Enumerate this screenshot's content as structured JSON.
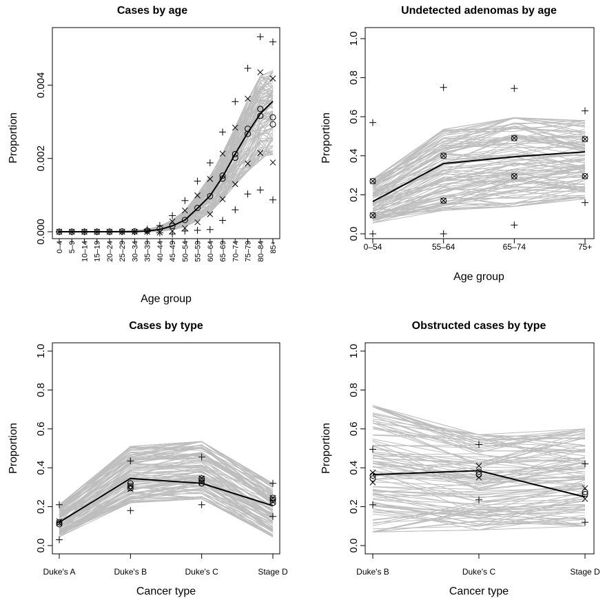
{
  "chart_data": [
    {
      "type": "line",
      "title": "Cases by age",
      "xlabel": "Age group",
      "ylabel": "Proportion",
      "categories": [
        "0–4",
        "5–9",
        "10–14",
        "15–19",
        "20–24",
        "25–29",
        "30–34",
        "35–39",
        "40–44",
        "45–49",
        "50–54",
        "55–59",
        "60–64",
        "65–69",
        "70–74",
        "75–79",
        "80–84",
        "85+"
      ],
      "ylim": [
        0,
        0.0054
      ],
      "yticks": [
        0.0,
        0.002,
        0.004
      ],
      "ytick_labels": [
        "0.000",
        "0.002",
        "0.004"
      ],
      "median": [
        0,
        0,
        0,
        0,
        0,
        0,
        0,
        2e-05,
        6e-05,
        0.00016,
        0.00032,
        0.00064,
        0.00098,
        0.0015,
        0.00212,
        0.0027,
        0.00322,
        0.00356
      ],
      "band_low": [
        0,
        0,
        0,
        0,
        0,
        0,
        0,
        0,
        1e-05,
        5e-05,
        0.00014,
        0.0003,
        0.00052,
        0.00085,
        0.00128,
        0.00165,
        0.00195,
        0.0021
      ],
      "band_high": [
        0,
        0,
        0,
        1e-05,
        1e-05,
        2e-05,
        4e-05,
        7e-05,
        0.00015,
        0.00032,
        0.00058,
        0.00102,
        0.00152,
        0.00215,
        0.00285,
        0.0036,
        0.00425,
        0.0044
      ],
      "circles": [
        [
          0,
          0
        ],
        [
          1,
          0
        ],
        [
          2,
          0
        ],
        [
          3,
          0
        ],
        [
          4,
          0
        ],
        [
          5,
          1e-05
        ],
        [
          6,
          1e-05
        ],
        [
          7,
          3e-05
        ],
        [
          8,
          8e-05
        ],
        [
          9,
          0.00016
        ],
        [
          10,
          0.00032
        ],
        [
          11,
          0.00065
        ],
        [
          12,
          0.00097
        ],
        [
          13,
          0.00145
        ],
        [
          13,
          0.00153
        ],
        [
          14,
          0.00202
        ],
        [
          14,
          0.00212
        ],
        [
          15,
          0.00267
        ],
        [
          15,
          0.00281
        ],
        [
          16,
          0.00316
        ],
        [
          16,
          0.00335
        ],
        [
          17,
          0.00293
        ],
        [
          17,
          0.00312
        ]
      ],
      "crosses": [
        [
          0,
          0
        ],
        [
          1,
          0
        ],
        [
          2,
          0
        ],
        [
          3,
          0
        ],
        [
          4,
          0
        ],
        [
          5,
          0
        ],
        [
          6,
          0
        ],
        [
          7,
          0
        ],
        [
          8,
          -2e-05
        ],
        [
          9,
          2e-05
        ],
        [
          9,
          0.00028
        ],
        [
          10,
          0.0001
        ],
        [
          10,
          0.00058
        ],
        [
          11,
          0.00026
        ],
        [
          11,
          0.00099
        ],
        [
          12,
          0.00048
        ],
        [
          12,
          0.00144
        ],
        [
          13,
          0.00089
        ],
        [
          13,
          0.00213
        ],
        [
          14,
          0.0013
        ],
        [
          14,
          0.00284
        ],
        [
          15,
          0.00186
        ],
        [
          15,
          0.00363
        ],
        [
          16,
          0.00215
        ],
        [
          16,
          0.00435
        ],
        [
          17,
          0.00189
        ],
        [
          17,
          0.00418
        ]
      ],
      "pluses": [
        [
          0,
          0
        ],
        [
          1,
          0
        ],
        [
          2,
          0
        ],
        [
          3,
          0
        ],
        [
          4,
          0
        ],
        [
          5,
          0
        ],
        [
          6,
          0
        ],
        [
          7,
          0
        ],
        [
          7,
          7e-05
        ],
        [
          8,
          -3e-05
        ],
        [
          8,
          0.00017
        ],
        [
          9,
          -6e-05
        ],
        [
          9,
          0.00044
        ],
        [
          10,
          2e-05
        ],
        [
          10,
          0.00085
        ],
        [
          11,
          4e-05
        ],
        [
          11,
          0.00138
        ],
        [
          12,
          6e-05
        ],
        [
          12,
          0.00188
        ],
        [
          13,
          0.00031
        ],
        [
          13,
          0.00272
        ],
        [
          14,
          0.0006
        ],
        [
          14,
          0.00355
        ],
        [
          15,
          0.00103
        ],
        [
          15,
          0.00446
        ],
        [
          16,
          0.00114
        ],
        [
          16,
          0.00532
        ],
        [
          17,
          0.00087
        ],
        [
          17,
          0.00518
        ]
      ]
    },
    {
      "type": "line",
      "title": "Undetected adenomas by age",
      "xlabel": "Age group",
      "ylabel": "Proportion",
      "categories": [
        "0–54",
        "55–64",
        "65–74",
        "75+"
      ],
      "ylim": [
        0,
        1.0
      ],
      "yticks": [
        0.0,
        0.2,
        0.4,
        0.6,
        0.8,
        1.0
      ],
      "ytick_labels": [
        "0.0",
        "0.2",
        "0.4",
        "0.6",
        "0.8",
        "1.0"
      ],
      "median": [
        0.165,
        0.36,
        0.395,
        0.42
      ],
      "band_low": [
        0.055,
        0.12,
        0.14,
        0.18
      ],
      "band_high": [
        0.28,
        0.535,
        0.595,
        0.58
      ],
      "circles": [
        [
          0,
          0.27
        ],
        [
          0,
          0.095
        ],
        [
          1,
          0.4
        ],
        [
          1,
          0.17
        ],
        [
          2,
          0.49
        ],
        [
          2,
          0.295
        ],
        [
          3,
          0.485
        ],
        [
          3,
          0.295
        ]
      ],
      "crosses": [
        [
          0,
          0.27
        ],
        [
          0,
          0.095
        ],
        [
          1,
          0.4
        ],
        [
          1,
          0.17
        ],
        [
          2,
          0.49
        ],
        [
          2,
          0.295
        ],
        [
          3,
          0.485
        ],
        [
          3,
          0.295
        ]
      ],
      "pluses": [
        [
          0,
          0.57
        ],
        [
          0,
          0.0
        ],
        [
          1,
          0.75
        ],
        [
          1,
          0.0
        ],
        [
          2,
          0.745
        ],
        [
          2,
          0.045
        ],
        [
          3,
          0.63
        ],
        [
          3,
          0.16
        ]
      ]
    },
    {
      "type": "line",
      "title": "Cases by type",
      "xlabel": "Cancer type",
      "ylabel": "Proportion",
      "categories": [
        "Duke's A",
        "Duke's B",
        "Duke's C",
        "Stage D"
      ],
      "ylim": [
        0,
        1.0
      ],
      "yticks": [
        0.0,
        0.2,
        0.4,
        0.6,
        0.8,
        1.0
      ],
      "ytick_labels": [
        "0.0",
        "0.2",
        "0.4",
        "0.6",
        "0.8",
        "1.0"
      ],
      "median": [
        0.12,
        0.345,
        0.32,
        0.205
      ],
      "band_low": [
        0.045,
        0.22,
        0.24,
        0.045
      ],
      "band_high": [
        0.21,
        0.51,
        0.535,
        0.32
      ],
      "circles": [
        [
          0,
          0.12
        ],
        [
          0,
          0.11
        ],
        [
          1,
          0.32
        ],
        [
          1,
          0.305
        ],
        [
          1,
          0.295
        ],
        [
          2,
          0.345
        ],
        [
          2,
          0.335
        ],
        [
          2,
          0.32
        ],
        [
          3,
          0.245
        ],
        [
          3,
          0.235
        ],
        [
          3,
          0.22
        ]
      ],
      "crosses": [
        [
          0,
          0.125
        ],
        [
          0,
          0.115
        ],
        [
          1,
          0.31
        ],
        [
          1,
          0.29
        ],
        [
          2,
          0.345
        ],
        [
          2,
          0.325
        ],
        [
          3,
          0.245
        ],
        [
          3,
          0.225
        ]
      ],
      "pluses": [
        [
          0,
          0.21
        ],
        [
          0,
          0.03
        ],
        [
          1,
          0.435
        ],
        [
          1,
          0.18
        ],
        [
          2,
          0.455
        ],
        [
          2,
          0.21
        ],
        [
          3,
          0.32
        ],
        [
          3,
          0.15
        ]
      ]
    },
    {
      "type": "line",
      "title": "Obstructed cases by type",
      "xlabel": "Cancer type",
      "ylabel": "Proportion",
      "categories": [
        "Duke's B",
        "Duke's C",
        "Stage D"
      ],
      "ylim": [
        0,
        1.0
      ],
      "yticks": [
        0.0,
        0.2,
        0.4,
        0.6,
        0.8,
        1.0
      ],
      "ytick_labels": [
        "0.0",
        "0.2",
        "0.4",
        "0.6",
        "0.8",
        "1.0"
      ],
      "median": [
        0.365,
        0.385,
        0.25
      ],
      "band_low": [
        0.07,
        0.08,
        0.1
      ],
      "band_high": [
        0.72,
        0.57,
        0.6
      ],
      "circles": [
        [
          0,
          0.36
        ],
        [
          0,
          0.345
        ],
        [
          1,
          0.38
        ],
        [
          1,
          0.365
        ],
        [
          2,
          0.275
        ],
        [
          2,
          0.265
        ]
      ],
      "crosses": [
        [
          0,
          0.375
        ],
        [
          0,
          0.325
        ],
        [
          1,
          0.41
        ],
        [
          1,
          0.35
        ],
        [
          2,
          0.295
        ],
        [
          2,
          0.24
        ]
      ],
      "pluses": [
        [
          0,
          0.495
        ],
        [
          0,
          0.21
        ],
        [
          1,
          0.52
        ],
        [
          1,
          0.235
        ],
        [
          2,
          0.42
        ],
        [
          2,
          0.12
        ]
      ]
    }
  ]
}
